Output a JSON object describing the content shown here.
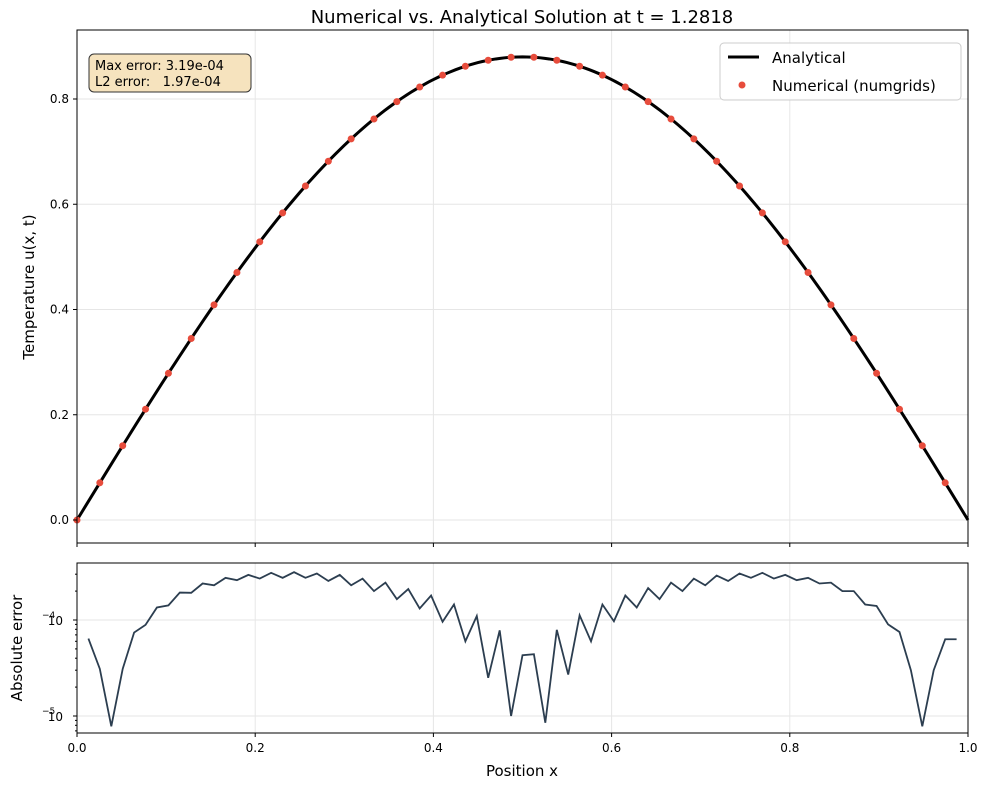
{
  "chart_data": [
    {
      "type": "line",
      "title": "Numerical vs. Analytical Solution at t = 1.2818",
      "xlabel": "",
      "ylabel": "Temperature u(x, t)",
      "xlim": [
        0,
        1
      ],
      "ylim": [
        -0.04,
        0.92
      ],
      "yticks": [
        "0.0",
        "0.2",
        "0.4",
        "0.6",
        "0.8"
      ],
      "grid": true,
      "legend_position": "upper right",
      "series": [
        {
          "name": "Analytical",
          "style": "line",
          "color": "#000000",
          "function": "0.88*sin(pi*x)"
        },
        {
          "name": "Numerical (numgrids)",
          "style": "markers",
          "color": "#e74c3c",
          "x": [
            0.0,
            0.0256,
            0.0513,
            0.0769,
            0.1026,
            0.1282,
            0.1538,
            0.1795,
            0.2051,
            0.2308,
            0.2564,
            0.2821,
            0.3077,
            0.3333,
            0.359,
            0.3846,
            0.4103,
            0.4359,
            0.4615,
            0.4872,
            0.5128,
            0.5385,
            0.5641,
            0.5897,
            0.6154,
            0.641,
            0.6667,
            0.6923,
            0.7179,
            0.7436,
            0.7692,
            0.7949,
            0.8205,
            0.8462,
            0.8718,
            0.8974,
            0.9231,
            0.9487,
            0.9744
          ],
          "values": [
            0.0,
            0.071,
            0.141,
            0.21,
            0.277,
            0.341,
            0.403,
            0.461,
            0.515,
            0.565,
            0.61,
            0.65,
            0.69,
            0.72,
            0.76,
            0.79,
            0.82,
            0.84,
            0.86,
            0.872,
            0.88,
            0.875,
            0.866,
            0.851,
            0.831,
            0.806,
            0.776,
            0.741,
            0.702,
            0.658,
            0.61,
            0.558,
            0.503,
            0.445,
            0.384,
            0.321,
            0.257,
            0.172,
            0.104
          ]
        }
      ],
      "annotation": {
        "lines": [
          "Max error: 3.19e-04",
          "L2 error:   1.97e-04"
        ],
        "box_color": "#f5deb3"
      }
    },
    {
      "type": "line",
      "xlabel": "Position x",
      "ylabel": "Absolute error",
      "yscale": "log",
      "xlim": [
        0,
        1
      ],
      "ylim": [
        6.8e-06,
        0.00038
      ],
      "xticks": [
        "0.0",
        "0.2",
        "0.4",
        "0.6",
        "0.8",
        "1.0"
      ],
      "yticks": [
        "10^-5",
        "10^-4"
      ],
      "grid": true,
      "series": [
        {
          "name": "error",
          "color": "#2c3e50",
          "x": [
            0.0128,
            0.0256,
            0.0385,
            0.0513,
            0.0641,
            0.0769,
            0.0897,
            0.1026,
            0.1154,
            0.1282,
            0.141,
            0.1538,
            0.1667,
            0.1795,
            0.1923,
            0.2051,
            0.2179,
            0.2308,
            0.2436,
            0.2564,
            0.2692,
            0.2821,
            0.2949,
            0.3077,
            0.3205,
            0.3333,
            0.3462,
            0.359,
            0.3718,
            0.3846,
            0.3974,
            0.4103,
            0.4231,
            0.4359,
            0.4487,
            0.4615,
            0.4744,
            0.4872,
            0.5,
            0.5128,
            0.5256,
            0.5385,
            0.5513,
            0.5641,
            0.5769,
            0.5897,
            0.6026,
            0.6154,
            0.6282,
            0.641,
            0.6538,
            0.6667,
            0.6795,
            0.6923,
            0.7051,
            0.7179,
            0.7308,
            0.7436,
            0.7564,
            0.7692,
            0.7821,
            0.7949,
            0.8077,
            0.8205,
            0.8333,
            0.8462,
            0.859,
            0.8718,
            0.8846,
            0.8974,
            0.9103,
            0.9231,
            0.9359,
            0.9487,
            0.9615,
            0.9744,
            0.9872
          ],
          "values": [
            6.4e-05,
            3.1e-05,
            7.8e-06,
            3.1e-05,
            7.4e-05,
            8.9e-05,
            0.000135,
            0.000142,
            0.000193,
            0.000192,
            0.00024,
            0.00023,
            0.000275,
            0.00026,
            0.000295,
            0.00027,
            0.00031,
            0.000275,
            0.000315,
            0.000275,
            0.000305,
            0.000255,
            0.000295,
            0.00023,
            0.00027,
            0.0002,
            0.000245,
            0.000165,
            0.00021,
            0.000132,
            0.00018,
            9.6e-05,
            0.000145,
            6e-05,
            0.00011,
            2.5e-05,
            7.8e-05,
            1e-05,
            4.3e-05,
            4.4e-05,
            8.5e-06,
            7.9e-05,
            2.7e-05,
            0.000112,
            6e-05,
            0.000145,
            9.7e-05,
            0.00018,
            0.000135,
            0.000215,
            0.000165,
            0.000245,
            0.0002,
            0.00027,
            0.00023,
            0.00029,
            0.000255,
            0.000305,
            0.000275,
            0.00031,
            0.00027,
            0.000295,
            0.00026,
            0.000275,
            0.00024,
            0.000245,
            0.0002,
            0.0002,
            0.000145,
            0.00014,
            9e-05,
            7.5e-05,
            3e-05,
            7.8e-06,
            3e-05,
            6.3e-05,
            6.3e-05
          ]
        }
      ]
    }
  ],
  "labels": {
    "title": "Numerical vs. Analytical Solution at t = 1.2818",
    "ylabel_top": "Temperature u(x, t)",
    "ylabel_bottom": "Absolute error",
    "xlabel": "Position x",
    "legend_analytical": "Analytical",
    "legend_numerical": "Numerical (numgrids)",
    "annot_max": "Max error: 3.19e-04",
    "annot_l2": "L2 error:   1.97e-04",
    "yt_top": [
      "0.0",
      "0.2",
      "0.4",
      "0.6",
      "0.8"
    ],
    "xt": [
      "0.0",
      "0.2",
      "0.4",
      "0.6",
      "0.8",
      "1.0"
    ],
    "yt_bot_base": "10",
    "yt_bot_exp": [
      "−5",
      "−4"
    ]
  },
  "colors": {
    "analytical": "#000000",
    "numerical": "#e74c3c",
    "error": "#2c3e50",
    "annotation_box": "#f5deb3"
  }
}
